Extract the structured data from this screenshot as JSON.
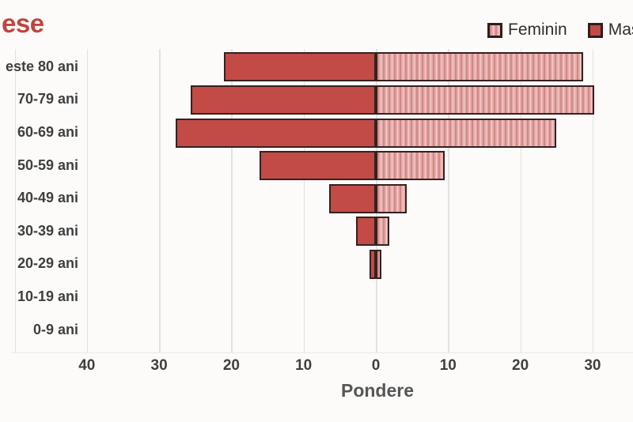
{
  "title_fragment": "ese",
  "legend": {
    "items": [
      {
        "label": "Feminin",
        "swatch": "striped-pink-square-icon"
      },
      {
        "label": "Masculin",
        "swatch": "solid-red-square-icon"
      }
    ]
  },
  "chart_data": {
    "type": "bar",
    "subtype": "population-pyramid-horizontal",
    "title_visible_fragment": "ese",
    "xlabel": "Pondere",
    "categories": [
      "este 80 ani",
      "70-79 ani",
      "60-69 ani",
      "50-59 ani",
      "40-49 ani",
      "30-39 ani",
      "20-29 ani",
      "10-19 ani",
      "0-9 ani"
    ],
    "series": [
      {
        "name": "Masculin",
        "side": "left",
        "values": [
          21.0,
          25.6,
          27.7,
          16.1,
          6.5,
          2.7,
          0.9,
          0,
          0
        ]
      },
      {
        "name": "Feminin",
        "side": "right",
        "values": [
          28.7,
          30.2,
          25.0,
          9.5,
          4.3,
          1.9,
          0.8,
          0,
          0
        ]
      }
    ],
    "x_tick_labels": [
      "40",
      "30",
      "20",
      "10",
      "0",
      "10",
      "20",
      "30"
    ],
    "x_tick_values": [
      -40,
      -30,
      -20,
      -10,
      0,
      10,
      20,
      30
    ],
    "gridline_values": [
      -50,
      -40,
      -30,
      -20,
      -10,
      0,
      10,
      20,
      30
    ],
    "axis_unit": "percent",
    "grid": true,
    "legend_position": "top-right"
  },
  "colors": {
    "masculin_fill": "#c24b46",
    "feminin_base": "#e8a9a7",
    "feminin_stripe_light": "#f2d0cd",
    "feminin_stripe_dark": "#cc8a89",
    "bar_border": "#362120",
    "legend_swatch_border": "#2f1d1c",
    "title_red": "#bf453f",
    "grid_line": "#e4e2e1",
    "axis_text": "#3f3f3f"
  }
}
